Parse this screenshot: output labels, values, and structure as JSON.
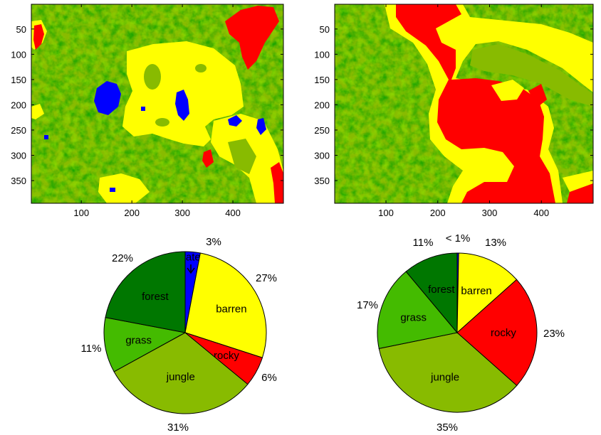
{
  "colors": {
    "water": "#0000ff",
    "barren": "#ffff00",
    "rocky": "#ff0000",
    "jungle": "#88bb00",
    "grass": "#44bb00",
    "forest": "#007700"
  },
  "chart_data": [
    {
      "type": "heatmap",
      "panel": "top-left",
      "description": "land cover classification map",
      "xticks": [
        100,
        200,
        300,
        400
      ],
      "yticks": [
        50,
        100,
        150,
        200,
        250,
        300,
        350
      ],
      "xlim": [
        1,
        500
      ],
      "ylim": [
        1,
        395
      ],
      "classes": [
        "water",
        "barren",
        "rocky",
        "jungle",
        "grass",
        "forest"
      ]
    },
    {
      "type": "heatmap",
      "panel": "top-right",
      "description": "land cover classification map",
      "xticks": [
        100,
        200,
        300,
        400
      ],
      "yticks": [
        50,
        100,
        150,
        200,
        250,
        300,
        350
      ],
      "xlim": [
        1,
        500
      ],
      "ylim": [
        1,
        395
      ],
      "classes": [
        "barren",
        "rocky",
        "jungle",
        "grass",
        "forest"
      ]
    },
    {
      "type": "pie",
      "panel": "bottom-left",
      "slices": [
        {
          "name": "water",
          "value": 3,
          "label": "3%",
          "color_key": "water"
        },
        {
          "name": "barren",
          "value": 27,
          "label": "27%",
          "color_key": "barren"
        },
        {
          "name": "rocky",
          "value": 6,
          "label": "6%",
          "color_key": "rocky"
        },
        {
          "name": "jungle",
          "value": 31,
          "label": "31%",
          "color_key": "jungle"
        },
        {
          "name": "grass",
          "value": 11,
          "label": "11%",
          "color_key": "grass"
        },
        {
          "name": "forest",
          "value": 22,
          "label": "22%",
          "color_key": "forest"
        }
      ]
    },
    {
      "type": "pie",
      "panel": "bottom-right",
      "slices": [
        {
          "name": "water",
          "value": 0.3,
          "label": "< 1%",
          "color_key": "water"
        },
        {
          "name": "barren",
          "value": 13,
          "label": "13%",
          "color_key": "barren"
        },
        {
          "name": "rocky",
          "value": 23,
          "label": "23%",
          "color_key": "rocky"
        },
        {
          "name": "jungle",
          "value": 35,
          "label": "35%",
          "color_key": "jungle"
        },
        {
          "name": "grass",
          "value": 17,
          "label": "17%",
          "color_key": "grass"
        },
        {
          "name": "forest",
          "value": 11,
          "label": "11%",
          "color_key": "forest"
        }
      ]
    }
  ]
}
